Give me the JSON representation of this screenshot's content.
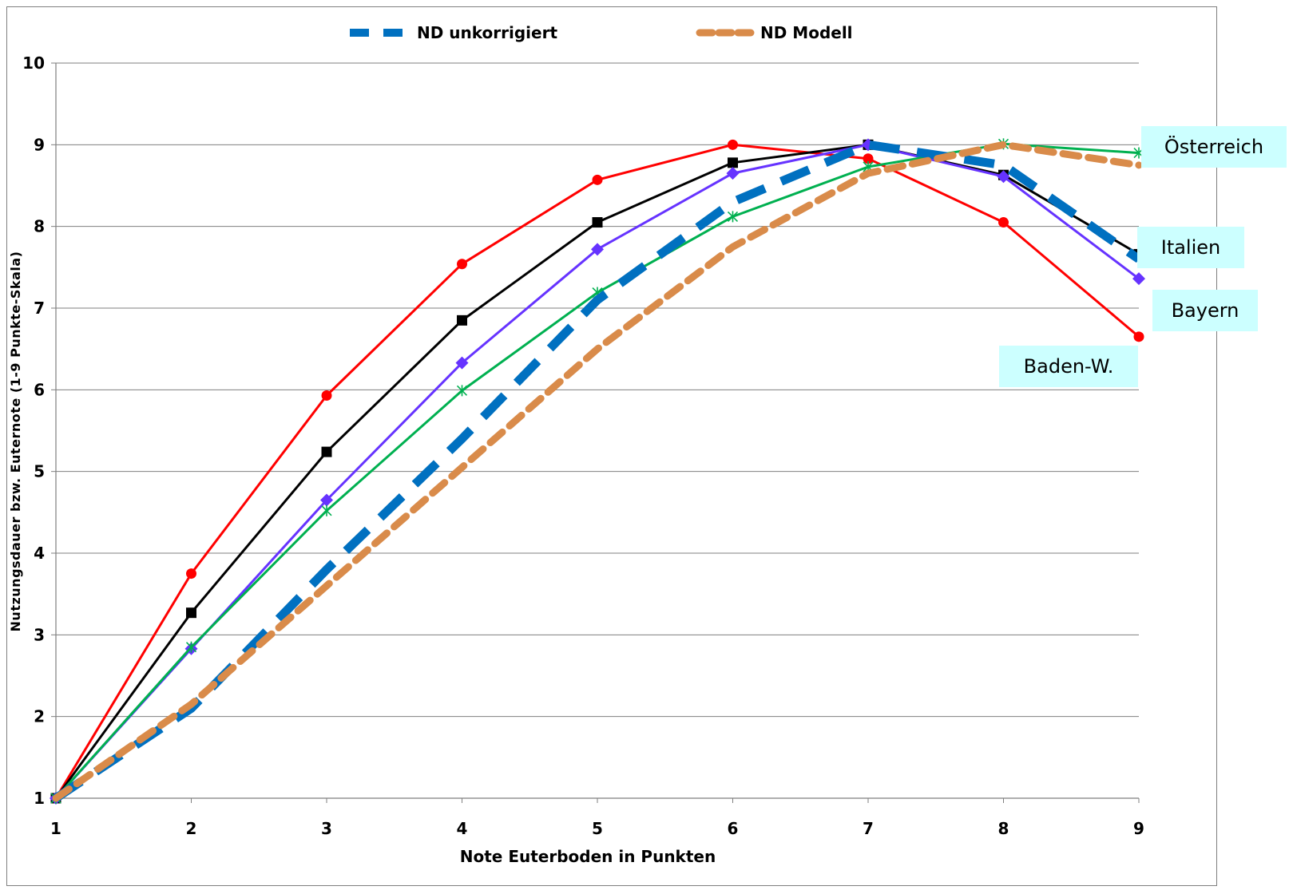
{
  "chart_data": {
    "type": "line",
    "xlabel": "Note Euterboden in Punkten",
    "ylabel": "Nutzungsdauer bzw. Euternote (1-9 Punkte-Skala)",
    "x": [
      1,
      2,
      3,
      4,
      5,
      6,
      7,
      8,
      9
    ],
    "xlim": [
      1,
      9
    ],
    "ylim": [
      1,
      10
    ],
    "y_ticks": [
      1,
      2,
      3,
      4,
      5,
      6,
      7,
      8,
      9,
      10
    ],
    "x_ticks": [
      1,
      2,
      3,
      4,
      5,
      6,
      7,
      8,
      9
    ],
    "grid": "horizontal",
    "legend_position": "top",
    "legend": [
      {
        "label": "ND unkorrigiert",
        "color": "#0070c0"
      },
      {
        "label": "ND Modell",
        "color": "#d98b4a"
      }
    ],
    "series": [
      {
        "name": "ND unkorrigiert",
        "color": "#0070c0",
        "style": "dashed-thick",
        "marker": "none",
        "values": [
          1,
          2.1,
          3.8,
          5.4,
          7.1,
          8.3,
          9.0,
          8.75,
          7.6
        ]
      },
      {
        "name": "ND Modell",
        "color": "#d98b4a",
        "style": "dashed-thick",
        "marker": "none",
        "values": [
          1,
          2.15,
          3.6,
          5.05,
          6.5,
          7.75,
          8.65,
          9.0,
          8.75
        ]
      },
      {
        "name": "Baden-W.",
        "color": "#ff0000",
        "style": "solid",
        "marker": "circle",
        "values": [
          1,
          3.75,
          5.93,
          7.54,
          8.57,
          9.0,
          8.83,
          8.05,
          6.65
        ]
      },
      {
        "name": "Italien",
        "color": "#000000",
        "style": "solid",
        "marker": "square",
        "values": [
          1,
          3.27,
          5.24,
          6.85,
          8.05,
          8.78,
          9.0,
          8.63,
          7.66
        ]
      },
      {
        "name": "Bayern",
        "color": "#6633ff",
        "style": "solid",
        "marker": "diamond",
        "values": [
          1,
          2.83,
          4.65,
          6.33,
          7.72,
          8.65,
          9.0,
          8.61,
          7.36
        ]
      },
      {
        "name": "Österreich",
        "color": "#00b050",
        "style": "solid",
        "marker": "star",
        "values": [
          1,
          2.85,
          4.52,
          5.99,
          7.19,
          8.12,
          8.73,
          9.01,
          8.9
        ]
      }
    ],
    "callouts": [
      {
        "series": "Österreich",
        "text": "Österreich"
      },
      {
        "series": "Italien",
        "text": "Italien"
      },
      {
        "series": "Bayern",
        "text": "Bayern"
      },
      {
        "series": "Baden-W.",
        "text": "Baden-W."
      }
    ]
  }
}
